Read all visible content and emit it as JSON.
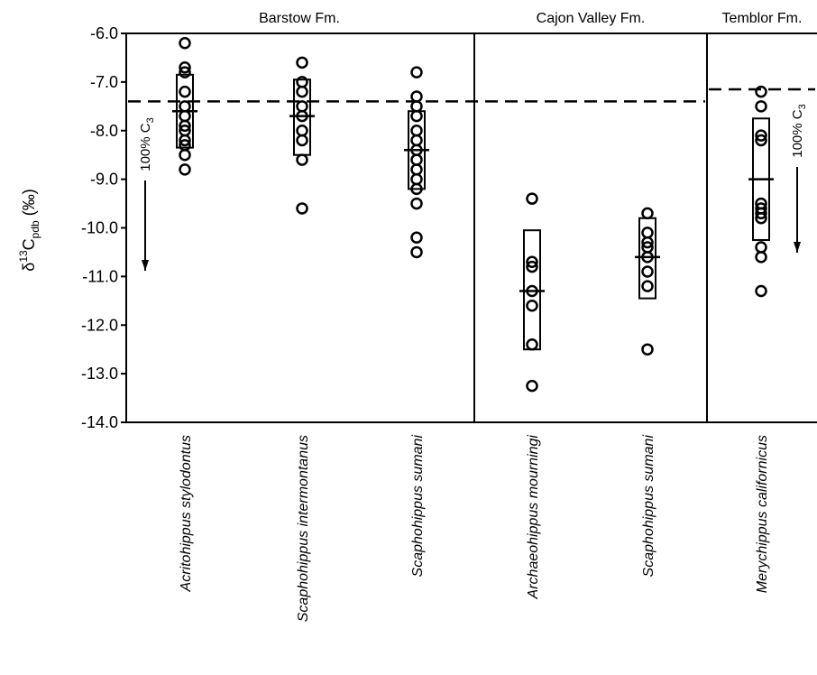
{
  "chart_data": {
    "type": "scatter",
    "title": "",
    "ylabel": {
      "delta": "δ",
      "sup": "13",
      "main": "C",
      "sub": "pdb",
      "unit": " (‰)"
    },
    "ylim": [
      -14.0,
      -6.0
    ],
    "y_ticks": [
      "-6.0",
      "-7.0",
      "-8.0",
      "-9.0",
      "-10.0",
      "-11.0",
      "-12.0",
      "-13.0",
      "-14.0"
    ],
    "y_tick_values": [
      -6,
      -7,
      -8,
      -9,
      -10,
      -11,
      -12,
      -13,
      -14
    ],
    "grid": false,
    "formations": [
      {
        "name": "Barstow Fm.",
        "c3_threshold": -7.4
      },
      {
        "name": "Cajon Valley Fm.",
        "c3_threshold": -7.4
      },
      {
        "name": "Temblor Fm.",
        "c3_threshold": -7.15
      }
    ],
    "c3_label": {
      "text": "100% C",
      "sub": "3"
    },
    "series": [
      {
        "name": "Acritohippus stylodontus",
        "formation": "Barstow Fm.",
        "mean": -7.6,
        "box": [
          -6.85,
          -8.35
        ],
        "values": [
          -6.2,
          -6.7,
          -6.8,
          -7.2,
          -7.5,
          -7.7,
          -7.9,
          -8.0,
          -8.2,
          -8.3,
          -8.5,
          -8.8
        ]
      },
      {
        "name": "Scaphohippus intermontanus",
        "formation": "Barstow Fm.",
        "mean": -7.7,
        "box": [
          -6.95,
          -8.5
        ],
        "values": [
          -6.6,
          -7.0,
          -7.2,
          -7.5,
          -7.7,
          -8.0,
          -8.2,
          -8.6,
          -9.6
        ]
      },
      {
        "name": "Scaphohippus sumani",
        "formation": "Barstow Fm.",
        "mean": -8.4,
        "box": [
          -7.6,
          -9.2
        ],
        "values": [
          -6.8,
          -7.3,
          -7.5,
          -7.7,
          -8.0,
          -8.2,
          -8.4,
          -8.6,
          -8.8,
          -9.0,
          -9.2,
          -9.5,
          -10.2,
          -10.5
        ]
      },
      {
        "name": "Archaeohippus mourningi",
        "formation": "Cajon Valley Fm.",
        "mean": -11.3,
        "box": [
          -10.05,
          -12.5
        ],
        "values": [
          -9.4,
          -10.7,
          -10.8,
          -11.3,
          -11.6,
          -12.4,
          -13.25
        ]
      },
      {
        "name": "Scaphohippus sumani",
        "formation": "Cajon Valley Fm.",
        "mean": -10.6,
        "box": [
          -9.8,
          -11.45
        ],
        "values": [
          -9.7,
          -10.1,
          -10.3,
          -10.4,
          -10.6,
          -10.9,
          -11.2,
          -12.5
        ]
      },
      {
        "name": "Merychippus californicus",
        "formation": "Temblor Fm.",
        "mean": -9.0,
        "box": [
          -7.75,
          -10.25
        ],
        "values": [
          -7.2,
          -7.5,
          -8.1,
          -8.2,
          -9.5,
          -9.6,
          -9.7,
          -9.8,
          -10.4,
          -10.6,
          -11.3
        ]
      }
    ]
  }
}
